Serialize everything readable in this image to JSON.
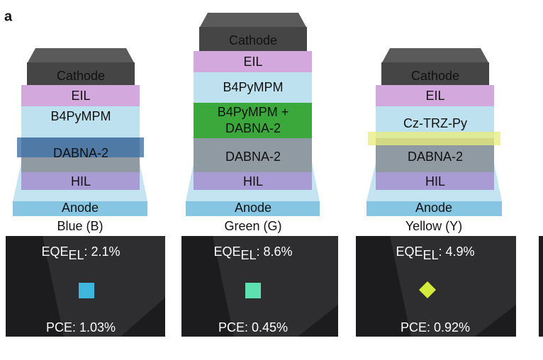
{
  "panel_label": "a",
  "devices": [
    {
      "name": "Blue (B)",
      "layers": [
        "Cathode",
        "EIL",
        "B4PyMPM",
        "DABNA-2",
        "HIL",
        "Anode"
      ],
      "eqe": {
        "label": "EQE",
        "subscript": "EL",
        "value": ": 2.1%"
      },
      "pce": "PCE: 1.03%"
    },
    {
      "name": "Green (G)",
      "layers": [
        "Cathode",
        "EIL",
        "B4PyMPM",
        "B4PyMPM +",
        "DABNA-2",
        "DABNA-2",
        "HIL",
        "Anode"
      ],
      "eqe": {
        "label": "EQE",
        "subscript": "EL",
        "value": ": 8.6%"
      },
      "pce": "PCE: 0.45%"
    },
    {
      "name": "Yellow (Y)",
      "layers": [
        "Cathode",
        "EIL",
        "Cz-TRZ-Py",
        "DABNA-2",
        "HIL",
        "Anode"
      ],
      "eqe": {
        "label": "EQE",
        "subscript": "EL",
        "value": ": 4.9%"
      },
      "pce": "PCE: 0.92%"
    }
  ]
}
